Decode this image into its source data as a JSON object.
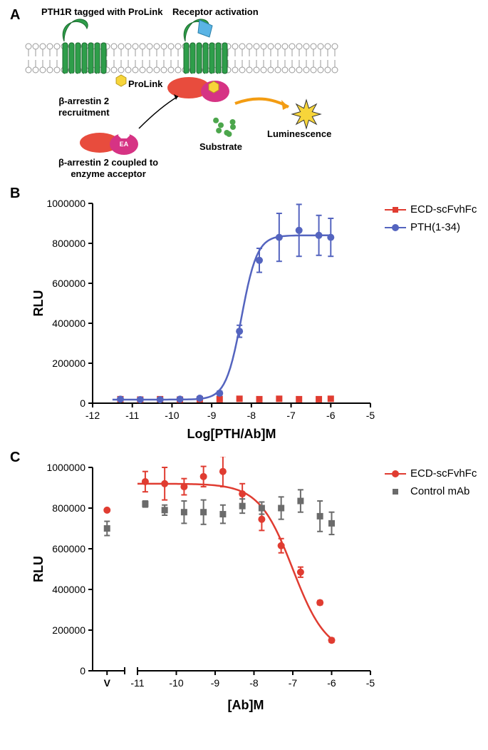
{
  "panelA": {
    "label": "A",
    "annotations": {
      "receptor_left": "PTH1R tagged with ProLink",
      "receptor_right": "Receptor activation",
      "prolink": "ProLink",
      "arrestin_recruit": "β-arrestin 2\nrecruitment",
      "arrestin_coupled": "β-arrestin 2 coupled to\nenzyme acceptor",
      "ea": "EA",
      "substrate": "Substrate",
      "luminescence": "Luminescence"
    },
    "colors": {
      "receptor": "#2e9e4a",
      "membrane_head": "#ffffff",
      "membrane_stroke": "#999999",
      "ligand": "#5ab4e5",
      "prolink": "#f7d53a",
      "arrestin_body": "#e84c3d",
      "arrestin_ea": "#d63384",
      "substrate": "#4ca64c",
      "lumin_star": "#f7d53a",
      "arrow_orange": "#f39c12"
    }
  },
  "panelB": {
    "label": "B",
    "type": "line-scatter",
    "xlabel": "Log[PTH/Ab]M",
    "ylabel": "RLU",
    "xlim": [
      -12,
      -5
    ],
    "ylim": [
      0,
      1000000
    ],
    "xticks": [
      -12,
      -11,
      -10,
      -9,
      -8,
      -7,
      -6,
      -5
    ],
    "yticks": [
      0,
      200000,
      400000,
      600000,
      800000,
      1000000
    ],
    "series": [
      {
        "name": "ECD-scFvhFc",
        "marker": "square",
        "color": "#e03c31",
        "points": [
          {
            "x": -11.3,
            "y": 20000
          },
          {
            "x": -10.8,
            "y": 18000
          },
          {
            "x": -10.3,
            "y": 20000
          },
          {
            "x": -9.8,
            "y": 18000
          },
          {
            "x": -9.3,
            "y": 20000
          },
          {
            "x": -8.8,
            "y": 20000
          },
          {
            "x": -8.3,
            "y": 22000
          },
          {
            "x": -7.8,
            "y": 20000
          },
          {
            "x": -7.3,
            "y": 22000
          },
          {
            "x": -6.8,
            "y": 20000
          },
          {
            "x": -6.3,
            "y": 20000
          },
          {
            "x": -6.0,
            "y": 22000
          }
        ],
        "fit": null
      },
      {
        "name": "PTH(1-34)",
        "marker": "circle",
        "color": "#5464bf",
        "points": [
          {
            "x": -11.3,
            "y": 20000,
            "err": 0
          },
          {
            "x": -10.8,
            "y": 18000,
            "err": 0
          },
          {
            "x": -10.3,
            "y": 18000,
            "err": 0
          },
          {
            "x": -9.8,
            "y": 20000,
            "err": 0
          },
          {
            "x": -9.3,
            "y": 25000,
            "err": 0
          },
          {
            "x": -8.8,
            "y": 50000,
            "err": 10000
          },
          {
            "x": -8.3,
            "y": 360000,
            "err": 30000
          },
          {
            "x": -7.8,
            "y": 715000,
            "err": 60000
          },
          {
            "x": -7.3,
            "y": 830000,
            "err": 120000
          },
          {
            "x": -6.8,
            "y": 865000,
            "err": 130000
          },
          {
            "x": -6.3,
            "y": 840000,
            "err": 100000
          },
          {
            "x": -6.0,
            "y": 830000,
            "err": 95000
          }
        ],
        "fit": {
          "bottom": 18000,
          "top": 840000,
          "ec50": -8.25,
          "hill": 2.2
        }
      }
    ],
    "axis_color": "#000000",
    "line_width": 2,
    "marker_size": 7
  },
  "panelC": {
    "label": "C",
    "type": "line-scatter",
    "xlabel": "[Ab]M",
    "ylabel": "RLU",
    "ylim": [
      0,
      1000000
    ],
    "xlim_right": [
      -11,
      -5
    ],
    "xticks_right": [
      -11,
      -10,
      -9,
      -8,
      -7,
      -6,
      -5
    ],
    "yticks": [
      0,
      200000,
      400000,
      600000,
      800000,
      1000000
    ],
    "vehicle_label": "V",
    "vehicle": {
      "ecd": {
        "y": 790000,
        "err": 0
      },
      "ctrl": {
        "y": 700000,
        "err": 35000
      }
    },
    "series": [
      {
        "name": "ECD-scFvhFc",
        "marker": "circle",
        "color": "#e03c31",
        "points": [
          {
            "x": -10.8,
            "y": 930000,
            "err": 50000
          },
          {
            "x": -10.3,
            "y": 920000,
            "err": 80000
          },
          {
            "x": -9.8,
            "y": 905000,
            "err": 40000
          },
          {
            "x": -9.3,
            "y": 955000,
            "err": 50000
          },
          {
            "x": -8.8,
            "y": 980000,
            "err": 75000
          },
          {
            "x": -8.3,
            "y": 870000,
            "err": 50000
          },
          {
            "x": -7.8,
            "y": 745000,
            "err": 55000
          },
          {
            "x": -7.3,
            "y": 615000,
            "err": 35000
          },
          {
            "x": -6.8,
            "y": 485000,
            "err": 25000
          },
          {
            "x": -6.3,
            "y": 335000,
            "err": 10000
          },
          {
            "x": -6.0,
            "y": 150000,
            "err": 10000
          }
        ],
        "fit": {
          "bottom": 80000,
          "top": 920000,
          "ec50": -7.0,
          "hill": -1.0
        }
      },
      {
        "name": "Control mAb",
        "marker": "square",
        "color": "#6b6b6b",
        "points": [
          {
            "x": -10.8,
            "y": 820000,
            "err": 15000
          },
          {
            "x": -10.3,
            "y": 790000,
            "err": 25000
          },
          {
            "x": -9.8,
            "y": 780000,
            "err": 55000
          },
          {
            "x": -9.3,
            "y": 780000,
            "err": 60000
          },
          {
            "x": -8.8,
            "y": 770000,
            "err": 45000
          },
          {
            "x": -8.3,
            "y": 810000,
            "err": 35000
          },
          {
            "x": -7.8,
            "y": 800000,
            "err": 30000
          },
          {
            "x": -7.3,
            "y": 800000,
            "err": 55000
          },
          {
            "x": -6.8,
            "y": 835000,
            "err": 55000
          },
          {
            "x": -6.3,
            "y": 760000,
            "err": 75000
          },
          {
            "x": -6.0,
            "y": 725000,
            "err": 55000
          }
        ],
        "fit": null
      }
    ],
    "axis_color": "#000000",
    "line_width": 2,
    "marker_size": 7
  }
}
